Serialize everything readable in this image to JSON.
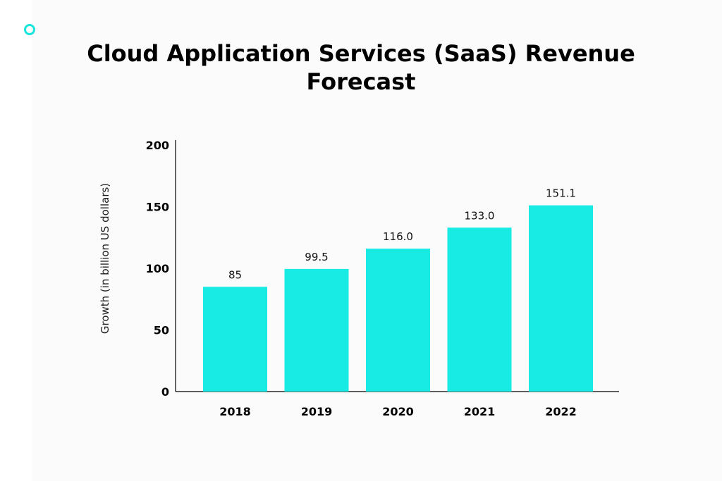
{
  "chart_data": {
    "type": "bar",
    "title": "Cloud Application Services (SaaS) Revenue Forecast",
    "title_lines": [
      "Cloud Application Services (SaaS) Revenue",
      "Forecast"
    ],
    "xlabel": "",
    "ylabel": "Growth (in billion US dollars)",
    "categories": [
      "2018",
      "2019",
      "2020",
      "2021",
      "2022"
    ],
    "values": [
      85,
      99.5,
      116.0,
      133.0,
      151.1
    ],
    "data_labels": [
      "85",
      "99.5",
      "116.0",
      "133.0",
      "151.1"
    ],
    "ylim": [
      0,
      200
    ],
    "yticks": [
      "0",
      "50",
      "100",
      "150",
      "200"
    ],
    "grid": false,
    "bar_color": "#18ebe3",
    "accent_color": "#1de5dc"
  }
}
